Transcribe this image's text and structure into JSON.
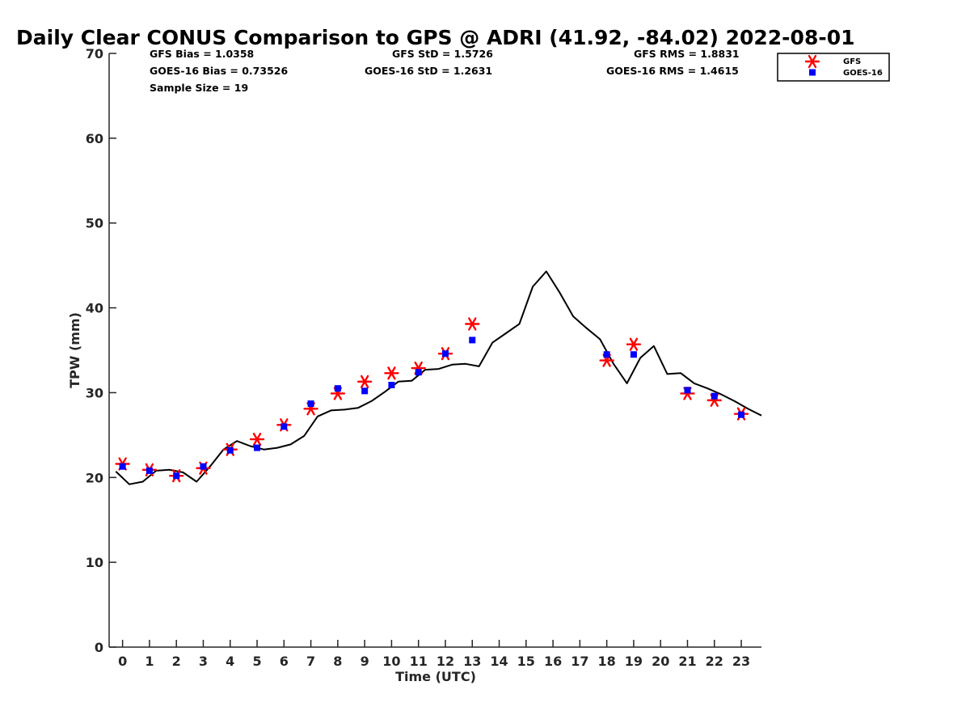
{
  "chart_data": {
    "type": "scatter",
    "title": "Daily Clear CONUS Comparison to GPS @ ADRI (41.92, -84.02) 2022-08-01",
    "xlabel": "Time (UTC)",
    "ylabel": "TPW (mm)",
    "xlim": [
      -0.5,
      23.75
    ],
    "ylim": [
      0,
      70
    ],
    "xticks": [
      0,
      1,
      2,
      3,
      4,
      5,
      6,
      7,
      8,
      9,
      10,
      11,
      12,
      13,
      14,
      15,
      16,
      17,
      18,
      19,
      20,
      21,
      22,
      23
    ],
    "yticks": [
      0,
      10,
      20,
      30,
      40,
      50,
      60,
      70
    ],
    "legend": {
      "position": "top-right",
      "entries": [
        "GFS",
        "GOES-16"
      ]
    },
    "stats": {
      "gfs_bias": "GFS Bias = 1.0358",
      "goes_bias": "GOES-16 Bias = 0.73526",
      "sample_size": "Sample Size = 19",
      "gfs_std": "GFS StD = 1.5726",
      "goes_std": "GOES-16 StD = 1.2631",
      "gfs_rms": "GFS RMS = 1.8831",
      "goes_rms": "GOES-16 RMS = 1.4615"
    },
    "gps_line": {
      "color": "#000000",
      "x": [
        -0.25,
        0.25,
        0.75,
        1.25,
        1.75,
        2.25,
        2.75,
        3.25,
        3.75,
        4.25,
        4.75,
        5.25,
        5.75,
        6.25,
        6.75,
        7.25,
        7.75,
        8.25,
        8.75,
        9.25,
        9.75,
        10.25,
        10.75,
        11.25,
        11.75,
        12.25,
        12.75,
        13.25,
        13.75,
        14.25,
        14.75,
        15.25,
        15.75,
        16.25,
        16.75,
        17.25,
        17.75,
        18.25,
        18.75,
        19.25,
        19.75,
        20.25,
        20.75,
        21.25,
        21.75,
        22.25,
        22.75,
        23.25,
        23.75
      ],
      "y": [
        20.7,
        19.2,
        19.5,
        20.8,
        20.9,
        20.6,
        19.5,
        21.3,
        23.3,
        24.3,
        23.7,
        23.3,
        23.5,
        23.9,
        24.9,
        27.2,
        27.9,
        28.0,
        28.2,
        29.0,
        30.1,
        31.3,
        31.4,
        32.7,
        32.8,
        33.3,
        33.4,
        33.1,
        35.9,
        37.0,
        38.1,
        42.5,
        44.3,
        41.8,
        39.0,
        37.6,
        36.3,
        33.4,
        31.1,
        34.1,
        35.5,
        32.2,
        32.3,
        31.1,
        30.5,
        29.8,
        29.0,
        28.1,
        27.3
      ]
    },
    "series": [
      {
        "name": "GFS",
        "marker": "asterisk",
        "color": "#ff0000",
        "x": [
          0,
          1,
          2,
          3,
          4,
          5,
          6,
          7,
          8,
          9,
          10,
          11,
          12,
          13,
          18,
          19,
          21,
          22,
          23
        ],
        "y": [
          21.6,
          20.9,
          20.2,
          21.1,
          23.3,
          24.5,
          26.2,
          28.1,
          29.9,
          31.3,
          32.3,
          32.9,
          34.6,
          38.1,
          33.8,
          35.7,
          29.9,
          29.1,
          27.5
        ]
      },
      {
        "name": "GOES-16",
        "marker": "square",
        "color": "#0000ff",
        "x": [
          0,
          1,
          2,
          3,
          4,
          5,
          6,
          7,
          8,
          9,
          10,
          11,
          12,
          13,
          18,
          19,
          21,
          22,
          23
        ],
        "y": [
          21.3,
          20.8,
          20.2,
          21.3,
          23.2,
          23.5,
          26.0,
          28.7,
          30.5,
          30.2,
          30.9,
          32.4,
          34.6,
          36.2,
          34.5,
          34.5,
          30.3,
          29.6,
          27.4
        ]
      }
    ]
  }
}
